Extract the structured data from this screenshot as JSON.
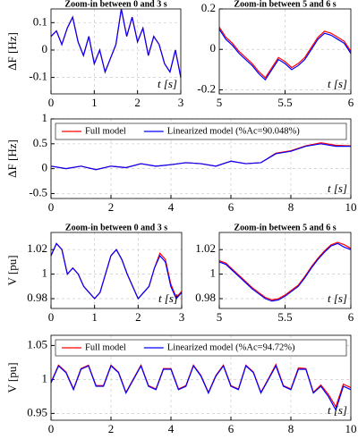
{
  "chart_data": [
    {
      "type": "line",
      "title": "Zoom-in between 0 and 3 s",
      "ylabel": "ΔF [Hz]",
      "xlabel": "t [s]",
      "x": [
        0,
        0.125,
        0.25,
        0.375,
        0.5,
        0.625,
        0.75,
        0.875,
        1,
        1.125,
        1.25,
        1.375,
        1.5,
        1.625,
        1.75,
        1.875,
        2,
        2.125,
        2.25,
        2.375,
        2.5,
        2.625,
        2.75,
        2.875,
        3
      ],
      "series": [
        {
          "name": "Full model",
          "color": "#ff0000",
          "values": [
            0.05,
            0.07,
            0.02,
            0.08,
            0.12,
            0.03,
            -0.02,
            0.05,
            -0.05,
            0.0,
            -0.08,
            -0.03,
            0.02,
            0.15,
            0.05,
            0.12,
            0.03,
            0.08,
            -0.02,
            0.05,
            0.02,
            -0.05,
            -0.08,
            0.0,
            -0.1
          ]
        },
        {
          "name": "Linearized model",
          "color": "#0000ff",
          "values": [
            0.05,
            0.07,
            0.02,
            0.08,
            0.12,
            0.03,
            -0.02,
            0.05,
            -0.05,
            0.0,
            -0.08,
            -0.03,
            0.02,
            0.15,
            0.05,
            0.12,
            0.03,
            0.08,
            -0.02,
            0.05,
            0.02,
            -0.05,
            -0.08,
            0.0,
            -0.1
          ]
        }
      ],
      "xlim": [
        0,
        3
      ],
      "xticks": [
        0,
        1,
        2,
        3
      ],
      "ylim": [
        -0.16,
        0.15
      ],
      "yticks": [
        -0.1,
        0,
        0.1
      ],
      "grid": true
    },
    {
      "type": "line",
      "title": "Zoom-in between 5 and 6 s",
      "xlabel": "t [s]",
      "x": [
        5,
        5.05,
        5.1,
        5.15,
        5.2,
        5.25,
        5.3,
        5.35,
        5.4,
        5.45,
        5.5,
        5.55,
        5.6,
        5.65,
        5.7,
        5.75,
        5.8,
        5.85,
        5.9,
        5.95,
        6
      ],
      "series": [
        {
          "name": "Full model",
          "color": "#ff0000",
          "values": [
            0.11,
            0.06,
            0.03,
            -0.01,
            -0.04,
            -0.07,
            -0.11,
            -0.14,
            -0.09,
            -0.04,
            -0.06,
            -0.09,
            -0.07,
            -0.04,
            0.01,
            0.06,
            0.09,
            0.08,
            0.06,
            0.04,
            -0.01
          ]
        },
        {
          "name": "Linearized model",
          "color": "#0000ff",
          "values": [
            0.1,
            0.05,
            0.02,
            -0.02,
            -0.05,
            -0.08,
            -0.12,
            -0.15,
            -0.1,
            -0.05,
            -0.07,
            -0.1,
            -0.08,
            -0.05,
            0.0,
            0.05,
            0.08,
            0.07,
            0.05,
            0.03,
            -0.02
          ]
        }
      ],
      "xlim": [
        5,
        6
      ],
      "xticks": [
        5,
        5.5,
        6
      ],
      "ylim": [
        -0.22,
        0.2
      ],
      "yticks": [
        -0.2,
        0,
        0.2
      ],
      "grid": true
    },
    {
      "type": "line",
      "ylabel": "ΔF [Hz]",
      "xlabel": "t [s]",
      "legend": "top",
      "x": [
        0,
        0.5,
        1,
        1.5,
        2,
        2.5,
        3,
        3.5,
        4,
        4.5,
        5,
        5.5,
        6,
        6.5,
        7,
        7.5,
        8,
        8.5,
        9,
        9.5,
        10
      ],
      "series": [
        {
          "name": "Full model",
          "color": "#ff0000",
          "values": [
            0.05,
            0.0,
            0.05,
            -0.02,
            0.05,
            0.02,
            0.1,
            0.05,
            0.08,
            0.12,
            0.1,
            0.05,
            0.15,
            0.1,
            0.12,
            0.31,
            0.36,
            0.46,
            0.52,
            0.47,
            0.46
          ]
        },
        {
          "name": "Linearized model (%Ac=90.048%)",
          "color": "#0000ff",
          "values": [
            0.05,
            0.0,
            0.05,
            -0.02,
            0.05,
            0.02,
            0.1,
            0.05,
            0.08,
            0.12,
            0.1,
            0.05,
            0.15,
            0.1,
            0.12,
            0.3,
            0.35,
            0.45,
            0.5,
            0.45,
            0.45
          ]
        }
      ],
      "xlim": [
        0,
        10
      ],
      "xticks": [
        0,
        2,
        4,
        6,
        8,
        10
      ],
      "ylim": [
        -0.6,
        1
      ],
      "yticks": [
        -0.5,
        0,
        0.5,
        1
      ],
      "grid": true
    },
    {
      "type": "line",
      "title": "Zoom-in between 0 and 3 s",
      "ylabel": "V [pu]",
      "xlabel": "t [s]",
      "x": [
        0,
        0.125,
        0.25,
        0.375,
        0.5,
        0.625,
        0.75,
        0.875,
        1,
        1.125,
        1.25,
        1.375,
        1.5,
        1.625,
        1.75,
        1.875,
        2,
        2.125,
        2.25,
        2.375,
        2.5,
        2.625,
        2.75,
        2.875,
        3
      ],
      "series": [
        {
          "name": "Full model",
          "color": "#ff0000",
          "values": [
            1.015,
            1.025,
            1.02,
            1.0,
            1.005,
            1.0,
            0.99,
            0.985,
            0.98,
            0.985,
            1.0,
            1.015,
            1.02,
            1.012,
            1.0,
            0.99,
            0.98,
            0.985,
            0.99,
            1.005,
            1.017,
            1.012,
            0.992,
            0.981,
            0.986
          ]
        },
        {
          "name": "Linearized model",
          "color": "#0000ff",
          "values": [
            1.015,
            1.025,
            1.02,
            1.0,
            1.005,
            1.0,
            0.99,
            0.985,
            0.98,
            0.985,
            1.0,
            1.015,
            1.02,
            1.012,
            1.0,
            0.99,
            0.98,
            0.985,
            0.99,
            1.005,
            1.015,
            1.01,
            0.99,
            0.98,
            0.985
          ]
        }
      ],
      "xlim": [
        0,
        3
      ],
      "xticks": [
        0,
        1,
        2,
        3
      ],
      "ylim": [
        0.972,
        1.034
      ],
      "yticks": [
        0.98,
        1,
        1.02
      ],
      "grid": true
    },
    {
      "type": "line",
      "title": "Zoom-in between 5 and 6 s",
      "xlabel": "t [s]",
      "x": [
        5,
        5.05,
        5.1,
        5.15,
        5.2,
        5.25,
        5.3,
        5.35,
        5.4,
        5.45,
        5.5,
        5.55,
        5.6,
        5.65,
        5.7,
        5.75,
        5.8,
        5.85,
        5.9,
        5.95,
        6
      ],
      "series": [
        {
          "name": "Full model",
          "color": "#ff0000",
          "values": [
            1.011,
            1.009,
            1.004,
            0.999,
            0.994,
            0.989,
            0.985,
            0.981,
            0.979,
            0.98,
            0.983,
            0.987,
            0.991,
            0.998,
            1.006,
            1.013,
            1.019,
            1.024,
            1.026,
            1.024,
            1.021
          ]
        },
        {
          "name": "Linearized model",
          "color": "#0000ff",
          "values": [
            1.01,
            1.008,
            1.003,
            0.998,
            0.993,
            0.988,
            0.984,
            0.98,
            0.978,
            0.979,
            0.982,
            0.986,
            0.99,
            0.997,
            1.005,
            1.012,
            1.018,
            1.023,
            1.025,
            1.022,
            1.02
          ]
        }
      ],
      "xlim": [
        5,
        6
      ],
      "xticks": [
        5,
        5.5,
        6
      ],
      "ylim": [
        0.972,
        1.034
      ],
      "yticks": [
        0.98,
        1,
        1.02
      ],
      "grid": true
    },
    {
      "type": "line",
      "ylabel": "V [pu]",
      "xlabel": "t [s]",
      "legend": "top",
      "x": [
        0,
        0.25,
        0.5,
        0.75,
        1,
        1.25,
        1.5,
        1.75,
        2,
        2.25,
        2.5,
        2.75,
        3,
        3.25,
        3.5,
        3.75,
        4,
        4.25,
        4.5,
        4.75,
        5,
        5.25,
        5.5,
        5.75,
        6,
        6.25,
        6.5,
        6.75,
        7,
        7.25,
        7.5,
        7.75,
        8,
        8.25,
        8.5,
        8.75,
        9,
        9.25,
        9.5,
        9.75,
        10
      ],
      "series": [
        {
          "name": "Full model",
          "color": "#ff0000",
          "values": [
            0.996,
            1.021,
            1.011,
            0.986,
            1.016,
            1.021,
            0.991,
            0.991,
            1.021,
            1.011,
            0.981,
            1.001,
            1.021,
            0.991,
            0.986,
            1.016,
            1.016,
            0.986,
            0.991,
            1.021,
            1.006,
            0.981,
            1.006,
            1.021,
            0.991,
            0.986,
            1.021,
            1.011,
            0.981,
            1.001,
            1.022,
            0.991,
            0.986,
            1.017,
            1.016,
            0.981,
            0.992,
            0.978,
            0.96,
            0.993,
            0.988
          ]
        },
        {
          "name": "Linearized model (%Ac=94.72%)",
          "color": "#0000ff",
          "values": [
            0.995,
            1.02,
            1.01,
            0.985,
            1.015,
            1.02,
            0.99,
            0.99,
            1.02,
            1.01,
            0.98,
            1.0,
            1.02,
            0.99,
            0.985,
            1.015,
            1.015,
            0.985,
            0.99,
            1.02,
            1.005,
            0.98,
            1.005,
            1.02,
            0.99,
            0.985,
            1.02,
            1.01,
            0.98,
            1.0,
            1.02,
            0.99,
            0.985,
            1.015,
            1.015,
            0.98,
            0.99,
            0.975,
            0.955,
            0.99,
            0.985
          ]
        }
      ],
      "xlim": [
        0,
        10
      ],
      "xticks": [
        0,
        2,
        4,
        6,
        8,
        10
      ],
      "ylim": [
        0.94,
        1.065
      ],
      "yticks": [
        0.95,
        1,
        1.05
      ],
      "grid": true
    }
  ]
}
